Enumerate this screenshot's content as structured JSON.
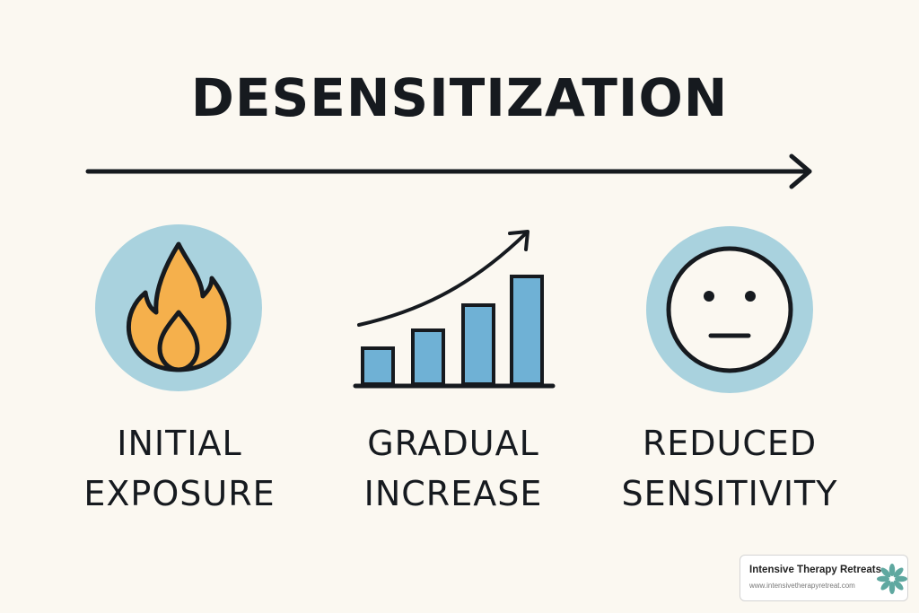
{
  "title": "DESENSITIZATION",
  "stages": [
    {
      "icon": "flame-icon",
      "line1": "INITIAL",
      "line2": "EXPOSURE"
    },
    {
      "icon": "rising-bar-chart-icon",
      "line1": "GRADUAL",
      "line2": "INCREASE"
    },
    {
      "icon": "neutral-face-icon",
      "line1": "REDUCED",
      "line2": "SENSITIVITY"
    }
  ],
  "brand": {
    "name": "Intensive Therapy Retreats",
    "url": "www.intensivetherapyretreat.com"
  },
  "colors": {
    "background": "#fbf8f1",
    "circle": "#a9d2de",
    "flame": "#f5b04c",
    "bar": "#6fb1d5",
    "ink": "#161a1f",
    "logo": "#5fa8a0"
  }
}
